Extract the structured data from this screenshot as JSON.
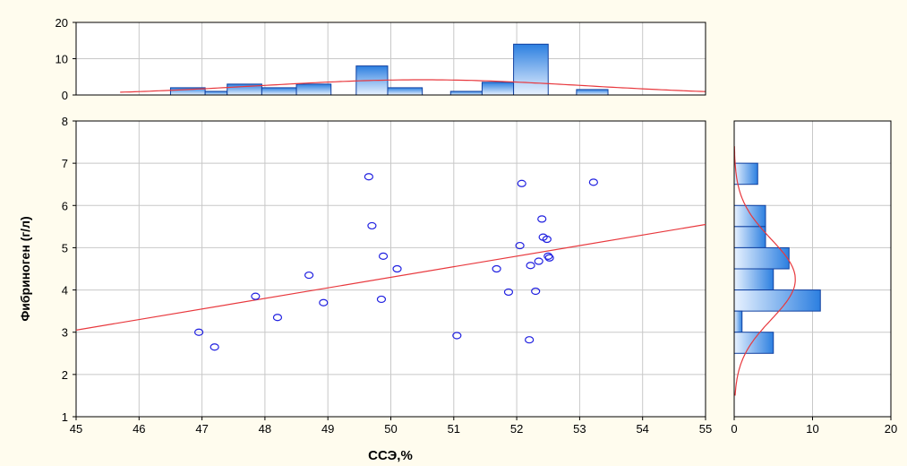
{
  "chart_data": {
    "type": "scatter",
    "background_color": "#FFFCEE",
    "plot_background": "#FFFFFF",
    "point_color": "#2020E0",
    "fit_line_color": "#E8383D",
    "bar_fill_top": "#2C7FE0",
    "bar_fill_bottom": "#E8F2FF",
    "bar_stroke": "#1040A0",
    "xlabel": "ССЭ,%",
    "ylabel": "Фибриноген (г/л)",
    "grid": true,
    "scatter": {
      "xlim": [
        45,
        55
      ],
      "ylim": [
        1,
        8
      ],
      "xticks": [
        "45",
        "46",
        "47",
        "48",
        "49",
        "50",
        "51",
        "52",
        "53",
        "54",
        "55"
      ],
      "yticks": [
        "1",
        "2",
        "3",
        "4",
        "5",
        "6",
        "7",
        "8"
      ],
      "points": [
        {
          "x": 46.95,
          "y": 3.0
        },
        {
          "x": 47.2,
          "y": 2.65
        },
        {
          "x": 47.85,
          "y": 3.85
        },
        {
          "x": 48.2,
          "y": 3.35
        },
        {
          "x": 48.7,
          "y": 4.35
        },
        {
          "x": 48.93,
          "y": 3.7
        },
        {
          "x": 49.65,
          "y": 6.68
        },
        {
          "x": 49.7,
          "y": 5.52
        },
        {
          "x": 49.85,
          "y": 3.78
        },
        {
          "x": 49.88,
          "y": 4.8
        },
        {
          "x": 50.1,
          "y": 4.5
        },
        {
          "x": 51.05,
          "y": 2.92
        },
        {
          "x": 51.68,
          "y": 4.5
        },
        {
          "x": 51.87,
          "y": 3.95
        },
        {
          "x": 52.05,
          "y": 5.05
        },
        {
          "x": 52.08,
          "y": 6.52
        },
        {
          "x": 52.2,
          "y": 2.82
        },
        {
          "x": 52.22,
          "y": 4.58
        },
        {
          "x": 52.3,
          "y": 3.97
        },
        {
          "x": 52.35,
          "y": 4.68
        },
        {
          "x": 52.4,
          "y": 5.68
        },
        {
          "x": 52.42,
          "y": 5.25
        },
        {
          "x": 52.48,
          "y": 5.2
        },
        {
          "x": 52.5,
          "y": 4.8
        },
        {
          "x": 52.52,
          "y": 4.76
        },
        {
          "x": 53.22,
          "y": 6.55
        }
      ],
      "fit_line": {
        "x": [
          45,
          55
        ],
        "y": [
          3.05,
          5.55
        ]
      }
    },
    "x_histogram": {
      "ylim": [
        0,
        20
      ],
      "yticks": [
        "0",
        "10",
        "20"
      ],
      "bins": [
        {
          "x0": 46.5,
          "x1": 47.05,
          "count": 2
        },
        {
          "x0": 47.05,
          "x1": 47.4,
          "count": 1
        },
        {
          "x0": 47.4,
          "x1": 47.95,
          "count": 3
        },
        {
          "x0": 47.95,
          "x1": 48.5,
          "count": 2
        },
        {
          "x0": 48.5,
          "x1": 49.05,
          "count": 3
        },
        {
          "x0": 49.45,
          "x1": 49.95,
          "count": 8
        },
        {
          "x0": 49.95,
          "x1": 50.5,
          "count": 2
        },
        {
          "x0": 50.95,
          "x1": 51.45,
          "count": 1
        },
        {
          "x0": 51.45,
          "x1": 51.95,
          "count": 3.5
        },
        {
          "x0": 51.95,
          "x1": 52.5,
          "count": 14
        },
        {
          "x0": 52.95,
          "x1": 53.45,
          "count": 1.5
        }
      ],
      "normal_curve": {
        "mean": 50.5,
        "sd": 2.6,
        "peak": 4.2,
        "range": [
          45.7,
          55
        ]
      }
    },
    "y_histogram": {
      "xlim": [
        0,
        20
      ],
      "xticks": [
        "0",
        "10",
        "20"
      ],
      "bins": [
        {
          "y0": 6.5,
          "y1": 7.0,
          "count": 3
        },
        {
          "y0": 5.5,
          "y1": 6.0,
          "count": 4
        },
        {
          "y0": 5.0,
          "y1": 5.5,
          "count": 4
        },
        {
          "y0": 4.5,
          "y1": 5.0,
          "count": 7
        },
        {
          "y0": 4.0,
          "y1": 4.5,
          "count": 5
        },
        {
          "y0": 3.5,
          "y1": 4.0,
          "count": 11
        },
        {
          "y0": 3.0,
          "y1": 3.5,
          "count": 1
        },
        {
          "y0": 2.5,
          "y1": 3.0,
          "count": 5
        }
      ],
      "normal_curve": {
        "mean": 4.25,
        "sd": 0.95,
        "peak": 7.8,
        "range": [
          1.5,
          7.4
        ]
      }
    }
  }
}
